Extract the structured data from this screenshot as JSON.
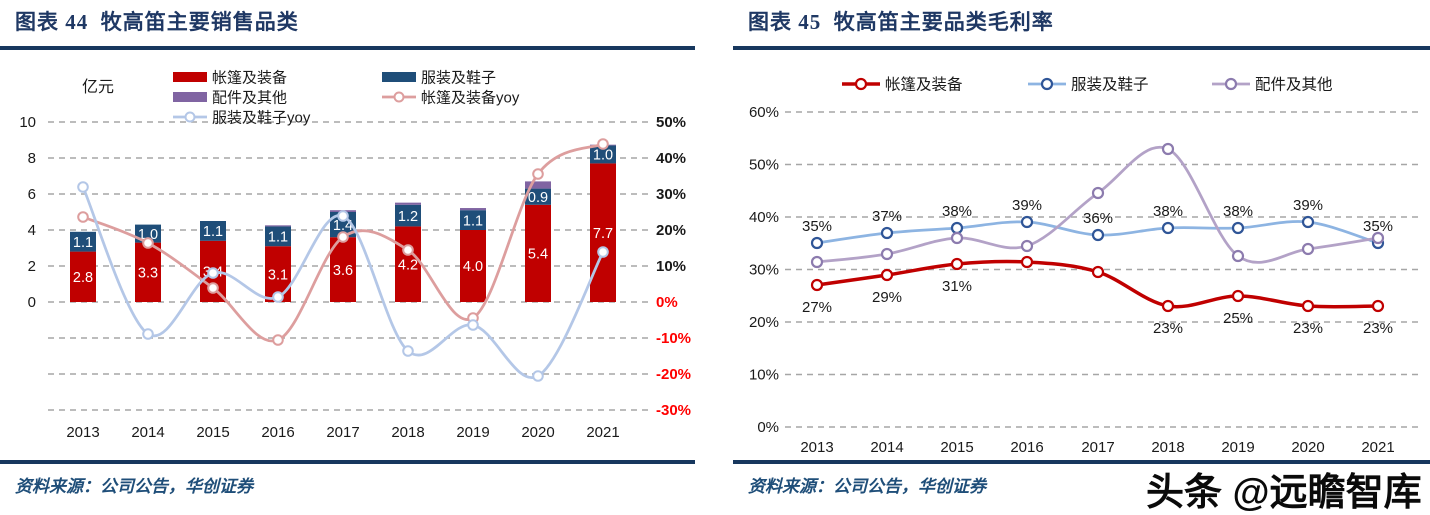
{
  "watermark": "头条 @远瞻智库",
  "colors": {
    "rule_navy": "#17375E",
    "title_text": "#1F3864",
    "source_text": "#1F4E79",
    "grid": "#A6A6A6",
    "tick_text": "#1a1a1a",
    "negative_tick": "#FF0000",
    "bar_label_text": "#FFFFFF"
  },
  "left_panel": {
    "title": "图表 44  牧高笛主要销售品类",
    "source": "资料来源：公司公告，华创证券"
  },
  "right_panel": {
    "title": "图表 45  牧高笛主要品类毛利率",
    "source": "资料来源：公司公告，华创证券"
  },
  "chart_data": [
    {
      "id": "sales-by-category",
      "type": "bar",
      "subtype": "stacked-bars-with-yoy-lines",
      "title": "牧高笛主要销售品类",
      "unit_label": "亿元",
      "grid": "dashed-horizontal",
      "legend_position": "top",
      "categories": [
        "2013",
        "2014",
        "2015",
        "2016",
        "2017",
        "2018",
        "2019",
        "2020",
        "2021"
      ],
      "bar_series": [
        {
          "name": "帐篷及装备",
          "color": "#C00000",
          "values": [
            2.8,
            3.3,
            3.4,
            3.1,
            3.6,
            4.2,
            4.0,
            5.4,
            7.7
          ],
          "labels": [
            "2.8",
            "3.3",
            "3.4",
            "3.1",
            "3.6",
            "4.2",
            "4.0",
            "5.4",
            "7.7"
          ]
        },
        {
          "name": "服装及鞋子",
          "color": "#1F4E79",
          "values": [
            1.1,
            1.0,
            1.1,
            1.1,
            1.4,
            1.2,
            1.1,
            0.9,
            1.0
          ],
          "labels": [
            "1.1",
            "1.0",
            "1.1",
            "1.1",
            "1.4",
            "1.2",
            "1.1",
            "0.9",
            "1.0"
          ]
        },
        {
          "name": "配件及其他",
          "color": "#8064A2",
          "values": [
            0,
            0,
            0,
            0.06,
            0.1,
            0.12,
            0.12,
            0.4,
            0.04
          ],
          "labels": [
            "",
            "",
            "",
            "",
            "",
            "",
            "",
            "",
            ""
          ]
        }
      ],
      "line_series": [
        {
          "name": "帐篷及装备yoy",
          "color": "#DD9E9E",
          "axis": "right",
          "values_pct": [
            23.5,
            16.5,
            4,
            -10.5,
            18,
            14.5,
            -4.5,
            35.5,
            44
          ]
        },
        {
          "name": "服装及鞋子yoy",
          "color": "#B4C7E7",
          "axis": "right",
          "values_pct": [
            32,
            -9,
            8,
            1.5,
            24,
            -13.5,
            -6.5,
            -20.5,
            14
          ]
        }
      ],
      "left_axis": {
        "title": "亿元",
        "ticks": [
          "10",
          "8",
          "6",
          "4",
          "2",
          "0"
        ],
        "range": [
          -6,
          10
        ]
      },
      "right_axis": {
        "ticks": [
          "50%",
          "40%",
          "30%",
          "20%",
          "10%",
          "0%",
          "-10%",
          "-20%",
          "-30%"
        ],
        "range": [
          -30,
          50
        ]
      }
    },
    {
      "id": "gross-margin-by-category",
      "type": "line",
      "title": "牧高笛主要品类毛利率",
      "grid": "dashed-horizontal",
      "legend_position": "top",
      "categories": [
        "2013",
        "2014",
        "2015",
        "2016",
        "2017",
        "2018",
        "2019",
        "2020",
        "2021"
      ],
      "series": [
        {
          "name": "服装及鞋子",
          "line_color": "#8DB4E2",
          "marker_stroke": "#2F5597",
          "emphasis": false,
          "values_pct": [
            35,
            37,
            38,
            39,
            36.5,
            38,
            38,
            39,
            35
          ],
          "labels": [
            "35%",
            "37%",
            "38%",
            "39%",
            "36%",
            "38%",
            "38%",
            "39%",
            "35%"
          ],
          "label_pos": "above"
        },
        {
          "name": "配件及其他",
          "line_color": "#B3A2C7",
          "marker_stroke": "#8C7BAE",
          "emphasis": false,
          "values_pct": [
            31.5,
            33,
            36,
            34.5,
            44.5,
            53,
            32.5,
            34,
            36
          ],
          "labels": [
            "",
            "",
            "",
            "",
            "",
            "",
            "",
            "",
            ""
          ],
          "label_pos": "above"
        },
        {
          "name": "帐篷及装备",
          "line_color": "#C00000",
          "marker_stroke": "#C00000",
          "emphasis": true,
          "values_pct": [
            27,
            29,
            31,
            31.5,
            29.5,
            23,
            25,
            23,
            23
          ],
          "labels": [
            "27%",
            "29%",
            "31%",
            "",
            "",
            "23%",
            "25%",
            "23%",
            "23%"
          ],
          "label_pos": "below"
        }
      ],
      "legend_order": [
        "帐篷及装备",
        "服装及鞋子",
        "配件及其他"
      ],
      "y_axis": {
        "ticks": [
          "60%",
          "50%",
          "40%",
          "30%",
          "20%",
          "10%",
          "0%"
        ],
        "range": [
          0,
          60
        ]
      }
    }
  ]
}
